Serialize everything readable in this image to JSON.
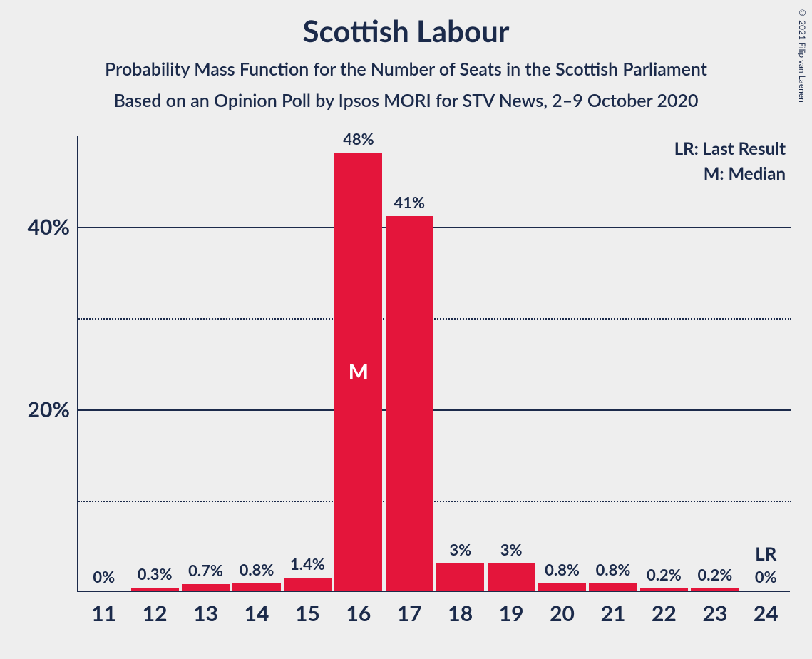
{
  "credit": "© 2021 Filip van Laenen",
  "chart": {
    "type": "bar",
    "title": "Scottish Labour",
    "subtitle1": "Probability Mass Function for the Number of Seats in the Scottish Parliament",
    "subtitle2": "Based on an Opinion Poll by Ipsos MORI for STV News, 2–9 October 2020",
    "background_color": "#eeeeee",
    "text_color": "#1b2a4a",
    "bar_color": "#e4153b",
    "title_fontsize": 42,
    "subtitle_fontsize": 25,
    "axis_label_fontsize": 30,
    "value_label_fontsize": 22,
    "ylim": [
      0,
      50
    ],
    "ytick_major": [
      20,
      40
    ],
    "ytick_minor": [
      10,
      30
    ],
    "ytick_labels": {
      "20": "20%",
      "40": "40%"
    },
    "categories": [
      "11",
      "12",
      "13",
      "14",
      "15",
      "16",
      "17",
      "18",
      "19",
      "20",
      "21",
      "22",
      "23",
      "24"
    ],
    "values": [
      0,
      0.3,
      0.7,
      0.8,
      1.4,
      48,
      41,
      3,
      3,
      0.8,
      0.8,
      0.2,
      0.2,
      0
    ],
    "value_labels": [
      "0%",
      "0.3%",
      "0.7%",
      "0.8%",
      "1.4%",
      "48%",
      "41%",
      "3%",
      "3%",
      "0.8%",
      "0.8%",
      "0.2%",
      "0.2%",
      "0%"
    ],
    "median_index": 5,
    "median_marker": "M",
    "last_result_index": 13,
    "last_result_marker": "LR",
    "legend": {
      "lr": "LR: Last Result",
      "m": "M: Median"
    }
  }
}
